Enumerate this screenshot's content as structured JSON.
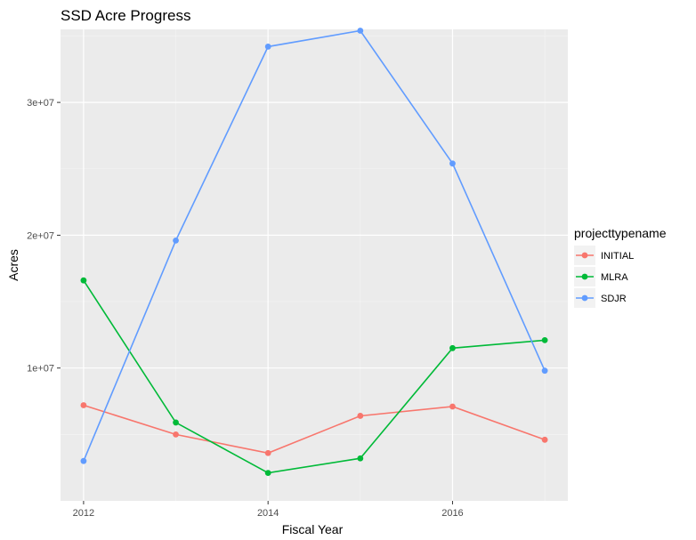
{
  "chart_data": {
    "type": "line",
    "title": "SSD Acre Progress",
    "xlabel": "Fiscal Year",
    "ylabel": "Acres",
    "x": [
      2012,
      2013,
      2014,
      2015,
      2016,
      2017
    ],
    "xlim": [
      2011.75,
      2017.25
    ],
    "ylim": [
      0,
      35500000
    ],
    "x_ticks": [
      2012,
      2014,
      2016
    ],
    "x_tick_labels": [
      "2012",
      "2014",
      "2016"
    ],
    "y_ticks": [
      10000000,
      20000000,
      30000000
    ],
    "y_tick_labels": [
      "1e+07",
      "2e+07",
      "3e+07"
    ],
    "grid": true,
    "legend": {
      "title": "projecttypename",
      "placement": "right"
    },
    "series": [
      {
        "name": "INITIAL",
        "color": "#F8766D",
        "values": [
          7200000,
          5000000,
          3600000,
          6400000,
          7100000,
          4600000
        ]
      },
      {
        "name": "MLRA",
        "color": "#00BA38",
        "values": [
          16600000,
          5900000,
          2100000,
          3200000,
          11500000,
          12100000
        ]
      },
      {
        "name": "SDJR",
        "color": "#619CFF",
        "values": [
          3000000,
          19600000,
          34200000,
          35400000,
          25400000,
          9800000
        ]
      }
    ]
  }
}
